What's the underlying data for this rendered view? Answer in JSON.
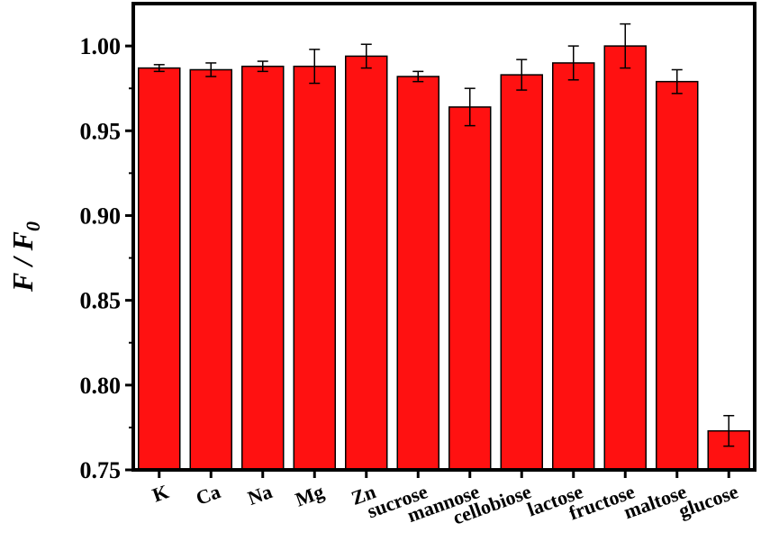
{
  "chart_data": {
    "type": "bar",
    "categories": [
      "K",
      "Ca",
      "Na",
      "Mg",
      "Zn",
      "sucrose",
      "mannose",
      "cellobiose",
      "lactose",
      "fructose",
      "maltose",
      "glucose"
    ],
    "values": [
      0.987,
      0.986,
      0.988,
      0.988,
      0.994,
      0.982,
      0.964,
      0.983,
      0.99,
      1.0,
      0.979,
      0.773
    ],
    "errors": [
      0.002,
      0.004,
      0.003,
      0.01,
      0.007,
      0.003,
      0.011,
      0.009,
      0.01,
      0.013,
      0.007,
      0.009
    ],
    "title": "",
    "xlabel": "",
    "ylabel": "F / F",
    "ylabel_subscript": "0",
    "ylim": [
      0.75,
      1.025
    ],
    "yticks": [
      "0.75",
      "0.80",
      "0.85",
      "0.90",
      "0.95",
      "1.00"
    ],
    "grid": false,
    "bar_color": "#ff1111",
    "edge_color": "#000000"
  }
}
